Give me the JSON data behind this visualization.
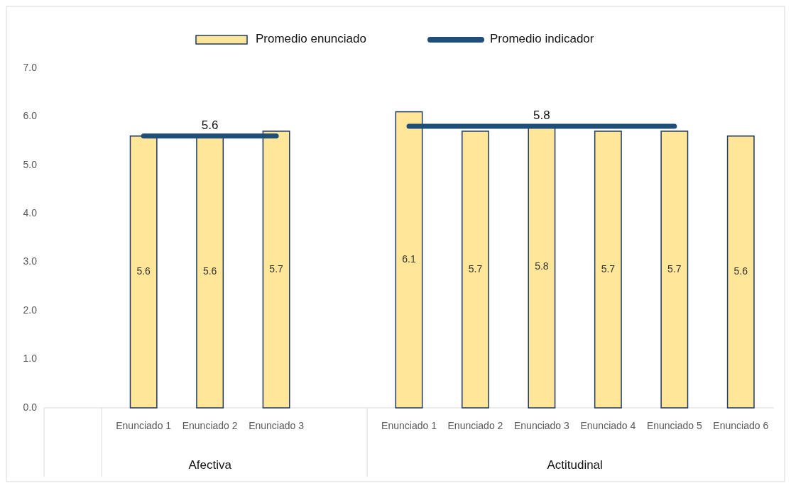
{
  "chart_data": {
    "type": "bar",
    "categories": [
      null,
      "Enunciado 1",
      "Enunciado 2",
      "Enunciado 3",
      null,
      "Enunciado 1",
      "Enunciado 2",
      "Enunciado 3",
      "Enunciado 4",
      "Enunciado 5",
      "Enunciado 6"
    ],
    "series": [
      {
        "name": "Promedio enunciado",
        "color": "#ffe699",
        "values": [
          null,
          5.6,
          5.6,
          5.7,
          null,
          6.1,
          5.7,
          5.8,
          5.7,
          5.7,
          5.6
        ]
      },
      {
        "name": "Promedio indicador",
        "type": "line",
        "color": "#1f4e79",
        "values": [
          null,
          5.6,
          5.6,
          5.6,
          null,
          5.8,
          5.8,
          5.8,
          5.8,
          5.8,
          null
        ],
        "value_labels": [
          null,
          null,
          "5.6",
          null,
          null,
          null,
          null,
          "5.8",
          null,
          null,
          null
        ]
      }
    ],
    "data_labels": true,
    "ylim": [
      0,
      7
    ],
    "yticks": [
      {
        "value": 0,
        "label": "0.0"
      },
      {
        "value": 1,
        "label": "1.0"
      },
      {
        "value": 2,
        "label": "2.0"
      },
      {
        "value": 3,
        "label": "3.0"
      },
      {
        "value": 4,
        "label": "4.0"
      },
      {
        "value": 5,
        "label": "5.0"
      },
      {
        "value": 6,
        "label": "6.0"
      },
      {
        "value": 7,
        "label": "7.0"
      }
    ],
    "legend": "top",
    "grid": false,
    "annotations": [
      "Afectiva",
      "Actitudinal"
    ]
  }
}
